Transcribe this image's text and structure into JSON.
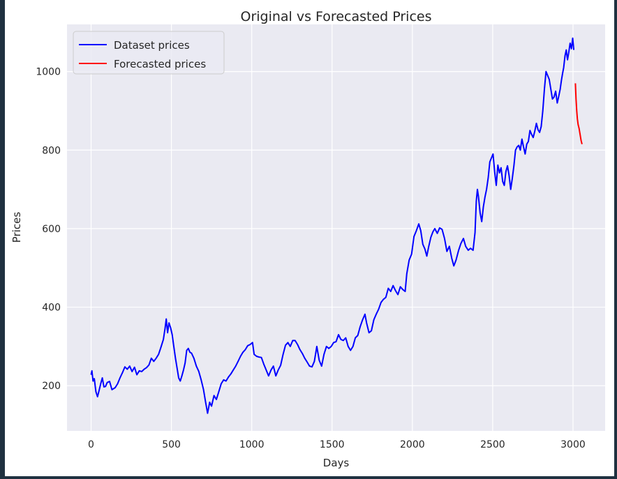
{
  "chart_data": {
    "type": "line",
    "title": "Original vs Forecasted Prices",
    "xlabel": "Days",
    "ylabel": "Prices",
    "xlim": [
      -150,
      3200
    ],
    "ylim": [
      85,
      1120
    ],
    "xticks": [
      0,
      500,
      1000,
      1500,
      2000,
      2500,
      3000
    ],
    "yticks": [
      200,
      400,
      600,
      800,
      1000
    ],
    "grid": true,
    "legend_position": "top-left",
    "series": [
      {
        "name": "Dataset prices",
        "color": "#0000ff",
        "points": [
          [
            0,
            228
          ],
          [
            5,
            238
          ],
          [
            12,
            212
          ],
          [
            20,
            218
          ],
          [
            30,
            185
          ],
          [
            40,
            172
          ],
          [
            50,
            188
          ],
          [
            60,
            205
          ],
          [
            70,
            220
          ],
          [
            80,
            197
          ],
          [
            90,
            198
          ],
          [
            100,
            208
          ],
          [
            115,
            211
          ],
          [
            130,
            190
          ],
          [
            150,
            195
          ],
          [
            165,
            205
          ],
          [
            180,
            220
          ],
          [
            195,
            233
          ],
          [
            210,
            248
          ],
          [
            225,
            242
          ],
          [
            240,
            250
          ],
          [
            255,
            236
          ],
          [
            270,
            247
          ],
          [
            285,
            228
          ],
          [
            300,
            238
          ],
          [
            315,
            236
          ],
          [
            330,
            242
          ],
          [
            345,
            246
          ],
          [
            360,
            253
          ],
          [
            375,
            270
          ],
          [
            390,
            262
          ],
          [
            405,
            270
          ],
          [
            420,
            280
          ],
          [
            435,
            298
          ],
          [
            450,
            318
          ],
          [
            460,
            345
          ],
          [
            468,
            370
          ],
          [
            476,
            335
          ],
          [
            485,
            360
          ],
          [
            495,
            348
          ],
          [
            505,
            330
          ],
          [
            515,
            300
          ],
          [
            525,
            270
          ],
          [
            535,
            245
          ],
          [
            545,
            220
          ],
          [
            555,
            212
          ],
          [
            565,
            225
          ],
          [
            575,
            240
          ],
          [
            585,
            258
          ],
          [
            595,
            290
          ],
          [
            605,
            295
          ],
          [
            615,
            285
          ],
          [
            625,
            283
          ],
          [
            640,
            270
          ],
          [
            655,
            250
          ],
          [
            670,
            237
          ],
          [
            685,
            215
          ],
          [
            700,
            190
          ],
          [
            712,
            160
          ],
          [
            725,
            130
          ],
          [
            738,
            158
          ],
          [
            750,
            148
          ],
          [
            765,
            175
          ],
          [
            780,
            165
          ],
          [
            795,
            185
          ],
          [
            810,
            205
          ],
          [
            825,
            215
          ],
          [
            840,
            212
          ],
          [
            855,
            222
          ],
          [
            870,
            230
          ],
          [
            885,
            240
          ],
          [
            900,
            250
          ],
          [
            915,
            262
          ],
          [
            930,
            275
          ],
          [
            945,
            285
          ],
          [
            960,
            292
          ],
          [
            975,
            302
          ],
          [
            990,
            305
          ],
          [
            1005,
            310
          ],
          [
            1015,
            280
          ],
          [
            1030,
            275
          ],
          [
            1045,
            273
          ],
          [
            1060,
            272
          ],
          [
            1075,
            255
          ],
          [
            1090,
            240
          ],
          [
            1105,
            225
          ],
          [
            1120,
            240
          ],
          [
            1135,
            250
          ],
          [
            1150,
            225
          ],
          [
            1165,
            240
          ],
          [
            1180,
            252
          ],
          [
            1195,
            280
          ],
          [
            1210,
            303
          ],
          [
            1225,
            310
          ],
          [
            1240,
            300
          ],
          [
            1255,
            315
          ],
          [
            1270,
            315
          ],
          [
            1285,
            305
          ],
          [
            1300,
            292
          ],
          [
            1315,
            282
          ],
          [
            1330,
            270
          ],
          [
            1345,
            260
          ],
          [
            1360,
            250
          ],
          [
            1375,
            248
          ],
          [
            1390,
            262
          ],
          [
            1405,
            300
          ],
          [
            1420,
            265
          ],
          [
            1435,
            250
          ],
          [
            1450,
            280
          ],
          [
            1465,
            300
          ],
          [
            1480,
            295
          ],
          [
            1495,
            300
          ],
          [
            1510,
            310
          ],
          [
            1525,
            312
          ],
          [
            1540,
            330
          ],
          [
            1555,
            318
          ],
          [
            1570,
            315
          ],
          [
            1585,
            322
          ],
          [
            1600,
            300
          ],
          [
            1615,
            290
          ],
          [
            1630,
            300
          ],
          [
            1645,
            322
          ],
          [
            1660,
            328
          ],
          [
            1675,
            350
          ],
          [
            1690,
            368
          ],
          [
            1705,
            382
          ],
          [
            1715,
            360
          ],
          [
            1730,
            335
          ],
          [
            1745,
            340
          ],
          [
            1760,
            368
          ],
          [
            1775,
            382
          ],
          [
            1790,
            395
          ],
          [
            1805,
            412
          ],
          [
            1820,
            420
          ],
          [
            1835,
            425
          ],
          [
            1850,
            448
          ],
          [
            1865,
            440
          ],
          [
            1880,
            455
          ],
          [
            1895,
            442
          ],
          [
            1910,
            432
          ],
          [
            1925,
            452
          ],
          [
            1940,
            445
          ],
          [
            1955,
            440
          ],
          [
            1965,
            485
          ],
          [
            1980,
            520
          ],
          [
            1995,
            535
          ],
          [
            2010,
            580
          ],
          [
            2025,
            595
          ],
          [
            2040,
            612
          ],
          [
            2052,
            595
          ],
          [
            2065,
            560
          ],
          [
            2078,
            548
          ],
          [
            2090,
            530
          ],
          [
            2102,
            555
          ],
          [
            2115,
            578
          ],
          [
            2128,
            592
          ],
          [
            2140,
            600
          ],
          [
            2155,
            588
          ],
          [
            2170,
            602
          ],
          [
            2185,
            598
          ],
          [
            2200,
            575
          ],
          [
            2215,
            542
          ],
          [
            2230,
            555
          ],
          [
            2245,
            525
          ],
          [
            2258,
            505
          ],
          [
            2272,
            520
          ],
          [
            2288,
            545
          ],
          [
            2302,
            562
          ],
          [
            2318,
            575
          ],
          [
            2332,
            555
          ],
          [
            2348,
            545
          ],
          [
            2362,
            550
          ],
          [
            2378,
            545
          ],
          [
            2390,
            590
          ],
          [
            2398,
            670
          ],
          [
            2405,
            700
          ],
          [
            2412,
            680
          ],
          [
            2422,
            640
          ],
          [
            2432,
            618
          ],
          [
            2442,
            655
          ],
          [
            2452,
            680
          ],
          [
            2462,
            700
          ],
          [
            2472,
            730
          ],
          [
            2482,
            770
          ],
          [
            2492,
            780
          ],
          [
            2502,
            790
          ],
          [
            2512,
            745
          ],
          [
            2522,
            710
          ],
          [
            2532,
            762
          ],
          [
            2542,
            742
          ],
          [
            2552,
            755
          ],
          [
            2562,
            720
          ],
          [
            2572,
            710
          ],
          [
            2582,
            745
          ],
          [
            2592,
            760
          ],
          [
            2602,
            735
          ],
          [
            2612,
            700
          ],
          [
            2622,
            728
          ],
          [
            2632,
            760
          ],
          [
            2642,
            800
          ],
          [
            2652,
            808
          ],
          [
            2662,
            812
          ],
          [
            2672,
            800
          ],
          [
            2682,
            828
          ],
          [
            2692,
            808
          ],
          [
            2702,
            790
          ],
          [
            2712,
            815
          ],
          [
            2722,
            822
          ],
          [
            2732,
            850
          ],
          [
            2742,
            840
          ],
          [
            2752,
            832
          ],
          [
            2762,
            848
          ],
          [
            2772,
            868
          ],
          [
            2782,
            852
          ],
          [
            2792,
            845
          ],
          [
            2802,
            860
          ],
          [
            2812,
            900
          ],
          [
            2822,
            955
          ],
          [
            2832,
            1000
          ],
          [
            2842,
            990
          ],
          [
            2852,
            980
          ],
          [
            2862,
            955
          ],
          [
            2872,
            930
          ],
          [
            2882,
            935
          ],
          [
            2892,
            950
          ],
          [
            2902,
            920
          ],
          [
            2910,
            935
          ],
          [
            2920,
            955
          ],
          [
            2928,
            978
          ],
          [
            2935,
            995
          ],
          [
            2942,
            1010
          ],
          [
            2950,
            1040
          ],
          [
            2958,
            1055
          ],
          [
            2966,
            1030
          ],
          [
            2974,
            1050
          ],
          [
            2982,
            1072
          ],
          [
            2990,
            1058
          ],
          [
            2998,
            1085
          ],
          [
            3005,
            1055
          ]
        ]
      },
      {
        "name": "Forecasted prices",
        "color": "#ff0000",
        "points": [
          [
            3015,
            970
          ],
          [
            3019,
            930
          ],
          [
            3023,
            900
          ],
          [
            3027,
            880
          ],
          [
            3032,
            865
          ],
          [
            3038,
            855
          ],
          [
            3044,
            840
          ],
          [
            3050,
            825
          ],
          [
            3056,
            815
          ]
        ]
      }
    ]
  }
}
